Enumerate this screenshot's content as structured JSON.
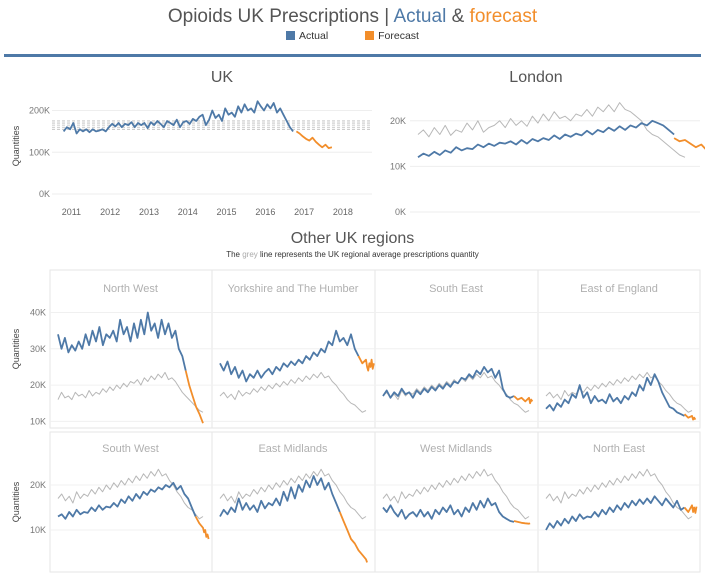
{
  "title": {
    "main": "Opioids UK Prescriptions |",
    "actual": "Actual",
    "amp": "&",
    "forecast": "forecast"
  },
  "legend": {
    "actual": "Actual",
    "forecast": "Forecast"
  },
  "colors": {
    "actual": "#4e79a7",
    "forecast": "#f28e2b",
    "grey": "#b8b8b8",
    "title_actual": "#4e79a7",
    "title_forecast": "#f28e2b"
  },
  "regions_section": {
    "title": "Other UK regions",
    "subtitle_pre": "The",
    "subtitle_grey": "grey",
    "subtitle_post": "line represents the UK regional average prescriptions quantity"
  },
  "chart_data": [
    {
      "type": "line",
      "title": "UK",
      "ylabel": "Quantities",
      "y_ticks": [
        "0K",
        "100K",
        "200K"
      ],
      "ylim": [
        0,
        230000
      ],
      "x_ticks": [
        "2011",
        "2012",
        "2013",
        "2014",
        "2015",
        "2016",
        "2017",
        "2018"
      ],
      "xlim": [
        2010.5,
        2018.75
      ],
      "reference_lines": [
        155000,
        160000,
        165000,
        170000,
        175000
      ],
      "actual": {
        "start": 2010.8,
        "step": 0.08333,
        "values": [
          150000,
          160000,
          155000,
          170000,
          145000,
          155000,
          150000,
          155000,
          148000,
          155000,
          150000,
          152000,
          155000,
          150000,
          160000,
          168000,
          162000,
          170000,
          160000,
          168000,
          165000,
          172000,
          160000,
          170000,
          165000,
          170000,
          158000,
          172000,
          165000,
          175000,
          168000,
          160000,
          175000,
          170000,
          165000,
          178000,
          160000,
          172000,
          175000,
          168000,
          180000,
          175000,
          185000,
          190000,
          165000,
          178000,
          200000,
          182000,
          190000,
          175000,
          205000,
          190000,
          195000,
          185000,
          210000,
          195000,
          215000,
          200000,
          205000,
          195000,
          222000,
          210000,
          200000,
          215000,
          205000,
          218000,
          195000,
          205000,
          190000,
          175000,
          160000,
          150000
        ]
      },
      "forecast": {
        "start": 2016.8,
        "step": 0.08333,
        "values": [
          150000,
          145000,
          138000,
          132000,
          128000,
          135000,
          125000,
          118000,
          112000,
          118000,
          110000,
          112000
        ]
      }
    },
    {
      "type": "line",
      "title": "London",
      "y_ticks": [
        "0K",
        "10K",
        "20K"
      ],
      "ylim": [
        0,
        25000
      ],
      "actual": {
        "values": [
          12000,
          12800,
          12300,
          13200,
          12500,
          13500,
          13000,
          14200,
          13500,
          14000,
          13800,
          14800,
          14200,
          15000,
          14500,
          15200,
          15000,
          15500,
          14800,
          15800,
          15000,
          16000,
          15500,
          16200,
          15800,
          16800,
          16000,
          17000,
          16500,
          17200,
          16800,
          17800,
          17000,
          18000,
          17500,
          18500,
          17800,
          18800,
          18000,
          19000,
          18500,
          19500,
          19000,
          20000,
          19500,
          19000,
          18000,
          17000
        ]
      },
      "forecast": {
        "values": [
          16200,
          15500,
          15800,
          15000,
          14200,
          14800,
          13500,
          13000,
          12500,
          12200
        ]
      },
      "average": {
        "values": [
          17000,
          18000,
          16500,
          18500,
          17000,
          19000,
          16800,
          18000,
          17500,
          19500,
          18000,
          20000,
          17500,
          18500,
          19000,
          20000,
          18500,
          20500,
          19000,
          20000,
          18800,
          21000,
          19500,
          21500,
          20000,
          22000,
          20500,
          21000,
          20000,
          21500,
          21000,
          22500,
          21000,
          23000,
          22000,
          23500,
          22000,
          24000,
          22500,
          22000,
          21000,
          20000,
          18000,
          17000,
          16500,
          15500,
          14500,
          13500,
          12500,
          12000
        ]
      }
    },
    {
      "type": "line",
      "title": "North West",
      "ylabel": "Quantities",
      "y_ticks": [
        "10K",
        "20K",
        "30K",
        "40K"
      ],
      "ylim": [
        9000,
        44000
      ],
      "actual": {
        "values": [
          34000,
          30000,
          33000,
          29000,
          31000,
          29500,
          32000,
          30000,
          34000,
          31000,
          35000,
          32000,
          36000,
          31000,
          34000,
          33000,
          35000,
          32000,
          38000,
          34000,
          36000,
          32000,
          37000,
          33000,
          38000,
          34000,
          40000,
          35000,
          37000,
          33000,
          38000,
          34000,
          37000,
          33000,
          35000,
          30000,
          28000,
          24000
        ]
      },
      "forecast": {
        "values": [
          24000,
          20000,
          17000,
          14000,
          12000,
          9500
        ]
      },
      "average": {
        "values": [
          16000,
          18000,
          16500,
          17000,
          16000,
          18000,
          17000,
          17500,
          16500,
          18500,
          17000,
          18000,
          17500,
          19000,
          18000,
          19500,
          18500,
          20000,
          19000,
          20500,
          19500,
          21000,
          20500,
          21500,
          20000,
          22000,
          21000,
          22500,
          21500,
          23000,
          22000,
          23500,
          21500,
          22000,
          21000,
          19500,
          18000,
          17000,
          16000,
          15000,
          14000,
          13000,
          12500
        ]
      }
    },
    {
      "type": "line",
      "title": "Yorkshire and The Humber",
      "actual": {
        "values": [
          26000,
          24000,
          26500,
          23000,
          25000,
          22000,
          24000,
          21000,
          23000,
          22000,
          24000,
          22000,
          23500,
          24500,
          23000,
          25000,
          24000,
          26000,
          25000,
          26500,
          25500,
          27000,
          26000,
          28000,
          27000,
          29000,
          28000,
          30000,
          29000,
          32000,
          31000,
          35000,
          32000,
          33000,
          31000,
          34000,
          30000,
          28000
        ]
      },
      "forecast": {
        "values": [
          28000,
          26000,
          27000,
          25000,
          24000,
          26000,
          25000,
          27000,
          24500,
          26000
        ]
      },
      "average": {
        "values": [
          17000,
          18000,
          16500,
          17500,
          16000,
          18500,
          17000,
          18000,
          17500,
          19000,
          18000,
          19500,
          18500,
          20000,
          19000,
          20500,
          19500,
          21000,
          20000,
          21500,
          20500,
          22000,
          21000,
          22500,
          21500,
          23000,
          22000,
          23500,
          22000,
          22500,
          21000,
          20000,
          18500,
          17500,
          16000,
          15000,
          14500,
          13500,
          12500,
          13000
        ]
      }
    },
    {
      "type": "line",
      "title": "South East",
      "actual": {
        "values": [
          17000,
          18500,
          16500,
          18000,
          17000,
          19000,
          17500,
          18000,
          16500,
          18500,
          17500,
          19000,
          18000,
          19500,
          18500,
          20000,
          19000,
          20500,
          19500,
          21000,
          20500,
          22000,
          21500,
          23000,
          22000,
          24000,
          23000,
          25000,
          23500,
          24500,
          22000,
          24000,
          19000,
          17000,
          16500,
          17000
        ]
      },
      "forecast": {
        "values": [
          17000,
          16000,
          16500,
          15500,
          16500,
          15000,
          16000,
          15500
        ]
      },
      "average": {
        "values": [
          17000,
          18000,
          16500,
          17500,
          16000,
          18500,
          17000,
          18000,
          17500,
          19000,
          18000,
          19500,
          18500,
          20000,
          19000,
          20500,
          19500,
          21000,
          20000,
          21500,
          20500,
          22000,
          21000,
          22500,
          21500,
          23000,
          22000,
          23500,
          22000,
          22500,
          21000,
          20000,
          18500,
          17500,
          16000,
          15000,
          14500,
          13500,
          12500,
          13000
        ]
      }
    },
    {
      "type": "line",
      "title": "East of England",
      "actual": {
        "values": [
          13500,
          14500,
          13000,
          15000,
          14000,
          16000,
          15000,
          17500,
          16500,
          20000,
          16500,
          18000,
          15000,
          17000,
          15500,
          16000,
          15000,
          17500,
          15500,
          16500,
          15000,
          17000,
          16000,
          18000,
          17000,
          20000,
          18500,
          22000,
          20000,
          23000,
          21000,
          18000,
          16000,
          14000,
          13500,
          12500,
          12000,
          11500
        ]
      },
      "forecast": {
        "values": [
          12000,
          11000,
          11500,
          10500,
          11000,
          10500
        ]
      },
      "average": {
        "values": [
          17000,
          18000,
          16500,
          17500,
          16000,
          18500,
          17000,
          18000,
          17500,
          19000,
          18000,
          19500,
          18500,
          20000,
          19000,
          20500,
          19500,
          21000,
          20000,
          21500,
          20500,
          22000,
          21000,
          22500,
          21500,
          23000,
          22000,
          23500,
          22000,
          22500,
          21000,
          20000,
          18500,
          17500,
          16000,
          15000,
          14500,
          13500,
          12500,
          13000
        ]
      }
    },
    {
      "type": "line",
      "title": "South West",
      "ylabel": "Quantities",
      "y_ticks": [
        "10K",
        "20K"
      ],
      "ylim": [
        2000,
        26000
      ],
      "actual": {
        "values": [
          13000,
          13500,
          12500,
          14000,
          13000,
          14500,
          13500,
          14000,
          13800,
          15000,
          14200,
          15500,
          14500,
          15200,
          15000,
          16000,
          15200,
          16800,
          16000,
          17500,
          16500,
          18000,
          17000,
          18500,
          17800,
          19000,
          18500,
          19500,
          19000,
          20000,
          19500,
          20500,
          19000,
          19800,
          18000,
          17000,
          15000,
          13000
        ]
      },
      "forecast": {
        "values": [
          13000,
          11500,
          10500,
          9500,
          10000,
          8500,
          9000,
          8000
        ]
      },
      "average": {
        "values": [
          17000,
          18000,
          16500,
          17500,
          16000,
          18500,
          17000,
          18000,
          17500,
          19000,
          18000,
          19500,
          18500,
          20000,
          19000,
          20500,
          19500,
          21000,
          20000,
          21500,
          20500,
          22000,
          21000,
          22500,
          21500,
          23000,
          22000,
          23500,
          22000,
          22500,
          21000,
          20000,
          18500,
          17500,
          16000,
          15000,
          14500,
          13500,
          12500,
          13000
        ]
      }
    },
    {
      "type": "line",
      "title": "East Midlands",
      "actual": {
        "values": [
          13000,
          14500,
          13500,
          15000,
          14000,
          17000,
          14500,
          16000,
          14500,
          15500,
          14000,
          16500,
          14800,
          16000,
          15500,
          17000,
          15500,
          18500,
          16500,
          19500,
          17000,
          20000,
          18500,
          21000,
          19500,
          22000,
          20000,
          21500,
          19000,
          20500,
          18000,
          16000,
          14000
        ]
      },
      "forecast": {
        "values": [
          14000,
          12000,
          10000,
          8000,
          7000,
          5500,
          4500,
          3500,
          2800
        ]
      },
      "average": {
        "values": [
          17000,
          18000,
          16500,
          17500,
          16000,
          18500,
          17000,
          18000,
          17500,
          19000,
          18000,
          19500,
          18500,
          20000,
          19000,
          20500,
          19500,
          21000,
          20000,
          21500,
          20500,
          22000,
          21000,
          22500,
          21500,
          23000,
          22000,
          23500,
          22000,
          22500,
          21000,
          20000,
          18500,
          17500,
          16000,
          15000,
          14500,
          13500,
          12500,
          13000
        ]
      }
    },
    {
      "type": "line",
      "title": "West Midlands",
      "actual": {
        "values": [
          15000,
          14000,
          15500,
          14000,
          13000,
          14500,
          12500,
          13500,
          14000,
          13000,
          14500,
          13000,
          14000,
          12500,
          14500,
          13500,
          15000,
          14000,
          15500,
          13500,
          14500,
          13000,
          15000,
          14000,
          16000,
          14500,
          16500,
          15000,
          17000,
          15500,
          16000,
          14000,
          13000,
          12500,
          12000,
          11800
        ]
      },
      "forecast": {
        "values": [
          12000,
          11800,
          11600,
          11500,
          11400,
          11500
        ]
      },
      "average": {
        "values": [
          17000,
          18000,
          16500,
          17500,
          16000,
          18500,
          17000,
          18000,
          17500,
          19000,
          18000,
          19500,
          18500,
          20000,
          19000,
          20500,
          19500,
          21000,
          20000,
          21500,
          20500,
          22000,
          21000,
          22500,
          21500,
          23000,
          22000,
          23500,
          22000,
          22500,
          21000,
          20000,
          18500,
          17500,
          16000,
          15000,
          14500,
          13500,
          12500,
          13000
        ]
      }
    },
    {
      "type": "line",
      "title": "North East",
      "actual": {
        "values": [
          10000,
          11500,
          10500,
          12000,
          11000,
          12500,
          11500,
          13000,
          12000,
          13500,
          12500,
          13000,
          12800,
          14000,
          13000,
          14500,
          13500,
          15000,
          14000,
          15500,
          14500,
          16000,
          15000,
          16500,
          15500,
          16800,
          15800,
          17000,
          16000,
          17500,
          16500,
          15500,
          17000,
          16000,
          15000,
          16500,
          14500,
          15000
        ]
      },
      "forecast": {
        "values": [
          15000,
          14000,
          15500,
          14000,
          15000,
          13800,
          15200
        ]
      },
      "average": {
        "values": [
          17000,
          18000,
          16500,
          17500,
          16000,
          18500,
          17000,
          18000,
          17500,
          19000,
          18000,
          19500,
          18500,
          20000,
          19000,
          20500,
          19500,
          21000,
          20000,
          21500,
          20500,
          22000,
          21000,
          22500,
          21500,
          23000,
          22000,
          23500,
          22000,
          22500,
          21000,
          20000,
          18500,
          17500,
          16000,
          15000,
          14500,
          13500,
          12500,
          13000
        ]
      }
    }
  ]
}
